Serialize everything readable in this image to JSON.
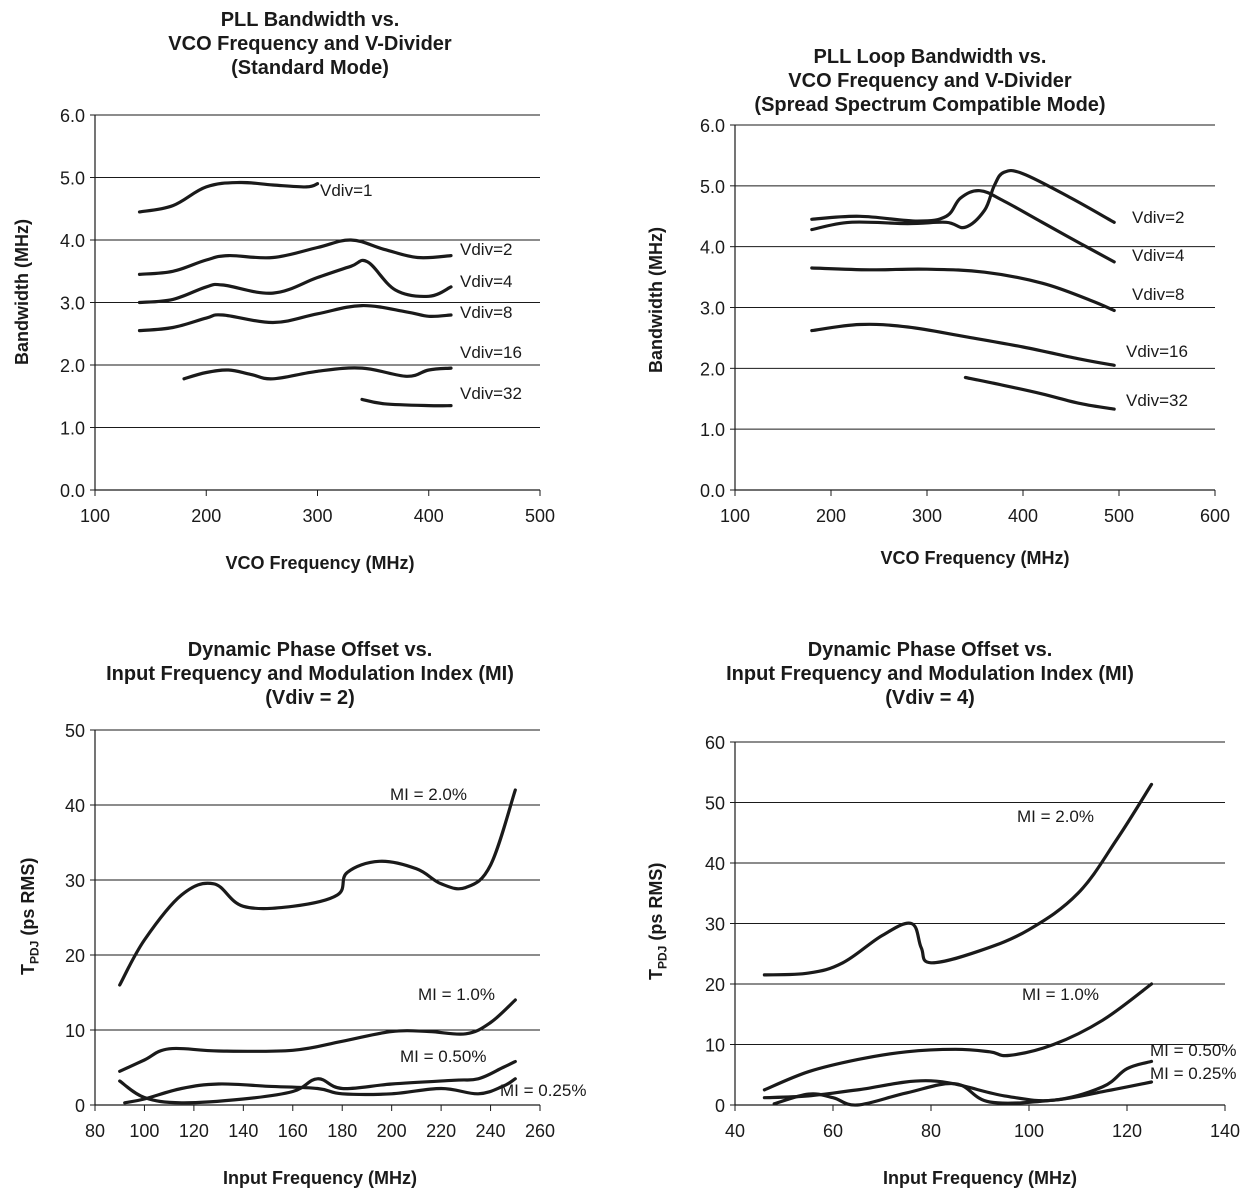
{
  "chart_data": [
    {
      "type": "line",
      "title": [
        "PLL Bandwidth vs.",
        "VCO Frequency and V-Divider",
        "(Standard Mode)"
      ],
      "xlabel": "VCO Frequency (MHz)",
      "ylabel": "Bandwidth (MHz)",
      "xlim": [
        100,
        500
      ],
      "ylim": [
        0.0,
        6.0
      ],
      "xticks": [
        "100",
        "200",
        "300",
        "400",
        "500"
      ],
      "yticks": [
        "0.0",
        "1.0",
        "2.0",
        "3.0",
        "4.0",
        "5.0",
        "6.0"
      ],
      "grid": "horizontal",
      "series": [
        {
          "name": "Vdiv=1",
          "x": [
            140,
            170,
            200,
            230,
            260,
            290,
            300
          ],
          "y": [
            4.45,
            4.55,
            4.85,
            4.92,
            4.88,
            4.85,
            4.9
          ]
        },
        {
          "name": "Vdiv=2",
          "x": [
            140,
            170,
            200,
            220,
            260,
            300,
            330,
            360,
            390,
            420
          ],
          "y": [
            3.45,
            3.5,
            3.68,
            3.75,
            3.72,
            3.88,
            4.0,
            3.85,
            3.72,
            3.75
          ]
        },
        {
          "name": "Vdiv=4",
          "x": [
            140,
            170,
            200,
            215,
            260,
            300,
            330,
            345,
            370,
            400,
            420
          ],
          "y": [
            3.0,
            3.05,
            3.25,
            3.28,
            3.15,
            3.4,
            3.58,
            3.65,
            3.2,
            3.1,
            3.25
          ]
        },
        {
          "name": "Vdiv=8",
          "x": [
            140,
            170,
            200,
            215,
            260,
            300,
            340,
            380,
            400,
            420
          ],
          "y": [
            2.55,
            2.6,
            2.75,
            2.8,
            2.68,
            2.82,
            2.95,
            2.85,
            2.78,
            2.8
          ]
        },
        {
          "name": "Vdiv=16",
          "x": [
            180,
            200,
            220,
            240,
            260,
            300,
            340,
            380,
            400,
            420
          ],
          "y": [
            1.78,
            1.88,
            1.92,
            1.85,
            1.78,
            1.9,
            1.95,
            1.82,
            1.92,
            1.95
          ]
        },
        {
          "name": "Vdiv=32",
          "x": [
            340,
            360,
            400,
            420
          ],
          "y": [
            1.45,
            1.38,
            1.35,
            1.35
          ]
        }
      ]
    },
    {
      "type": "line",
      "title": [
        "PLL Loop Bandwidth vs.",
        "VCO Frequency and V-Divider",
        "(Spread Spectrum Compatible Mode)"
      ],
      "xlabel": "VCO Frequency (MHz)",
      "ylabel": "Bandwidth (MHz)",
      "xlim": [
        100,
        600
      ],
      "ylim": [
        0.0,
        6.0
      ],
      "xticks": [
        "100",
        "200",
        "300",
        "400",
        "500",
        "600"
      ],
      "yticks": [
        "0.0",
        "1.0",
        "2.0",
        "3.0",
        "4.0",
        "5.0",
        "6.0"
      ],
      "grid": "horizontal",
      "series": [
        {
          "name": "Vdiv=2",
          "x": [
            180,
            220,
            280,
            320,
            340,
            360,
            370,
            380,
            400,
            450,
            495
          ],
          "y": [
            4.28,
            4.4,
            4.38,
            4.4,
            4.32,
            4.6,
            5.0,
            5.22,
            5.2,
            4.8,
            4.4
          ]
        },
        {
          "name": "Vdiv=4",
          "x": [
            180,
            230,
            290,
            320,
            335,
            355,
            380,
            420,
            460,
            495
          ],
          "y": [
            4.45,
            4.5,
            4.42,
            4.5,
            4.8,
            4.92,
            4.75,
            4.4,
            4.05,
            3.75
          ]
        },
        {
          "name": "Vdiv=8",
          "x": [
            180,
            240,
            300,
            360,
            420,
            470,
            495
          ],
          "y": [
            3.65,
            3.62,
            3.63,
            3.58,
            3.4,
            3.12,
            2.95
          ]
        },
        {
          "name": "Vdiv=16",
          "x": [
            180,
            230,
            280,
            340,
            400,
            460,
            495
          ],
          "y": [
            2.62,
            2.72,
            2.68,
            2.52,
            2.35,
            2.15,
            2.05
          ]
        },
        {
          "name": "Vdiv=32",
          "x": [
            340,
            380,
            420,
            460,
            495
          ],
          "y": [
            1.85,
            1.72,
            1.58,
            1.42,
            1.33
          ]
        }
      ]
    },
    {
      "type": "line",
      "title": [
        "Dynamic Phase Offset vs.",
        "Input Frequency and Modulation Index (MI)",
        "(Vdiv = 2)"
      ],
      "xlabel": "Input Frequency (MHz)",
      "ylabel": {
        "main": "T",
        "sub": "PDJ",
        "rest": " (ps RMS)"
      },
      "xlim": [
        80,
        260
      ],
      "ylim": [
        0,
        50
      ],
      "xticks": [
        "80",
        "100",
        "120",
        "140",
        "160",
        "180",
        "200",
        "220",
        "240",
        "260"
      ],
      "yticks": [
        "0",
        "10",
        "20",
        "30",
        "40",
        "50"
      ],
      "grid": "horizontal",
      "series": [
        {
          "name": "MI = 2.0%",
          "x": [
            90,
            100,
            115,
            128,
            140,
            160,
            178,
            182,
            195,
            210,
            220,
            230,
            240,
            250
          ],
          "y": [
            16,
            22,
            28,
            29.5,
            26.5,
            26.5,
            28,
            31,
            32.5,
            31.5,
            29.5,
            29,
            32,
            42
          ]
        },
        {
          "name": "MI = 1.0%",
          "x": [
            90,
            100,
            110,
            130,
            160,
            180,
            200,
            215,
            230,
            240,
            250
          ],
          "y": [
            4.5,
            6,
            7.5,
            7.2,
            7.3,
            8.5,
            9.8,
            9.8,
            9.5,
            11,
            14
          ]
        },
        {
          "name": "MI = 0.50%",
          "x": [
            92,
            100,
            115,
            130,
            150,
            170,
            180,
            200,
            220,
            235,
            245,
            250
          ],
          "y": [
            0.3,
            0.8,
            2.2,
            2.8,
            2.5,
            2.2,
            1.5,
            1.5,
            2.2,
            1.5,
            2.5,
            3.5
          ]
        },
        {
          "name": "MI = 0.25%",
          "x": [
            90,
            100,
            115,
            140,
            160,
            170,
            180,
            200,
            225,
            235,
            245,
            250
          ],
          "y": [
            3.2,
            1,
            0.3,
            0.8,
            1.8,
            3.5,
            2.2,
            2.8,
            3.3,
            3.5,
            5,
            5.8
          ]
        }
      ]
    },
    {
      "type": "line",
      "title": [
        "Dynamic Phase Offset vs.",
        "Input Frequency and Modulation Index (MI)",
        "(Vdiv = 4)"
      ],
      "xlabel": "Input Frequency (MHz)",
      "ylabel": {
        "main": "T",
        "sub": "PDJ",
        "rest": " (ps RMS)"
      },
      "xlim": [
        40,
        140
      ],
      "ylim": [
        0,
        60
      ],
      "xticks": [
        "40",
        "60",
        "80",
        "100",
        "120",
        "140"
      ],
      "yticks": [
        "0",
        "10",
        "20",
        "30",
        "40",
        "50",
        "60"
      ],
      "grid": "horizontal",
      "series": [
        {
          "name": "MI = 2.0%",
          "x": [
            46,
            55,
            62,
            70,
            76,
            78,
            80,
            90,
            100,
            110,
            118,
            125
          ],
          "y": [
            21.5,
            21.8,
            23.5,
            28,
            30,
            26,
            23.5,
            25.5,
            29,
            35,
            44,
            53
          ]
        },
        {
          "name": "MI = 1.0%",
          "x": [
            46,
            55,
            65,
            75,
            85,
            92,
            96,
            105,
            115,
            125
          ],
          "y": [
            2.5,
            5.5,
            7.5,
            8.8,
            9.2,
            8.8,
            8.2,
            10,
            14,
            20
          ]
        },
        {
          "name": "MI = 0.50%",
          "x": [
            46,
            55,
            65,
            80,
            95,
            105,
            115,
            120,
            125
          ],
          "y": [
            1.2,
            1.5,
            2.5,
            4,
            1.5,
            0.8,
            3,
            6,
            7.2
          ]
        },
        {
          "name": "MI = 0.25%",
          "x": [
            48,
            55,
            60,
            65,
            75,
            85,
            92,
            105,
            115,
            125
          ],
          "y": [
            0.2,
            1.8,
            1.2,
            0,
            2,
            3.5,
            0.5,
            0.8,
            2.2,
            3.8
          ]
        }
      ]
    }
  ],
  "labels": [
    [
      {
        "t": "Vdiv=1"
      },
      {
        "t": "Vdiv=2"
      },
      {
        "t": "Vdiv=4"
      },
      {
        "t": "Vdiv=8"
      },
      {
        "t": "Vdiv=16"
      },
      {
        "t": "Vdiv=32"
      }
    ],
    [
      {
        "t": "Vdiv=2"
      },
      {
        "t": "Vdiv=4"
      },
      {
        "t": "Vdiv=8"
      },
      {
        "t": "Vdiv=16"
      },
      {
        "t": "Vdiv=32"
      }
    ],
    [
      {
        "t": "MI = 2.0%"
      },
      {
        "t": "MI = 1.0%"
      },
      {
        "t": "MI = 0.50%"
      },
      {
        "t": "MI = 0.25%"
      }
    ],
    [
      {
        "t": "MI = 2.0%"
      },
      {
        "t": "MI = 1.0%"
      },
      {
        "t": "MI = 0.50%"
      },
      {
        "t": "MI = 0.25%"
      }
    ]
  ],
  "colors": {
    "line": "#1a1a1a",
    "grid": "#1a1a1a",
    "background": "#ffffff"
  }
}
